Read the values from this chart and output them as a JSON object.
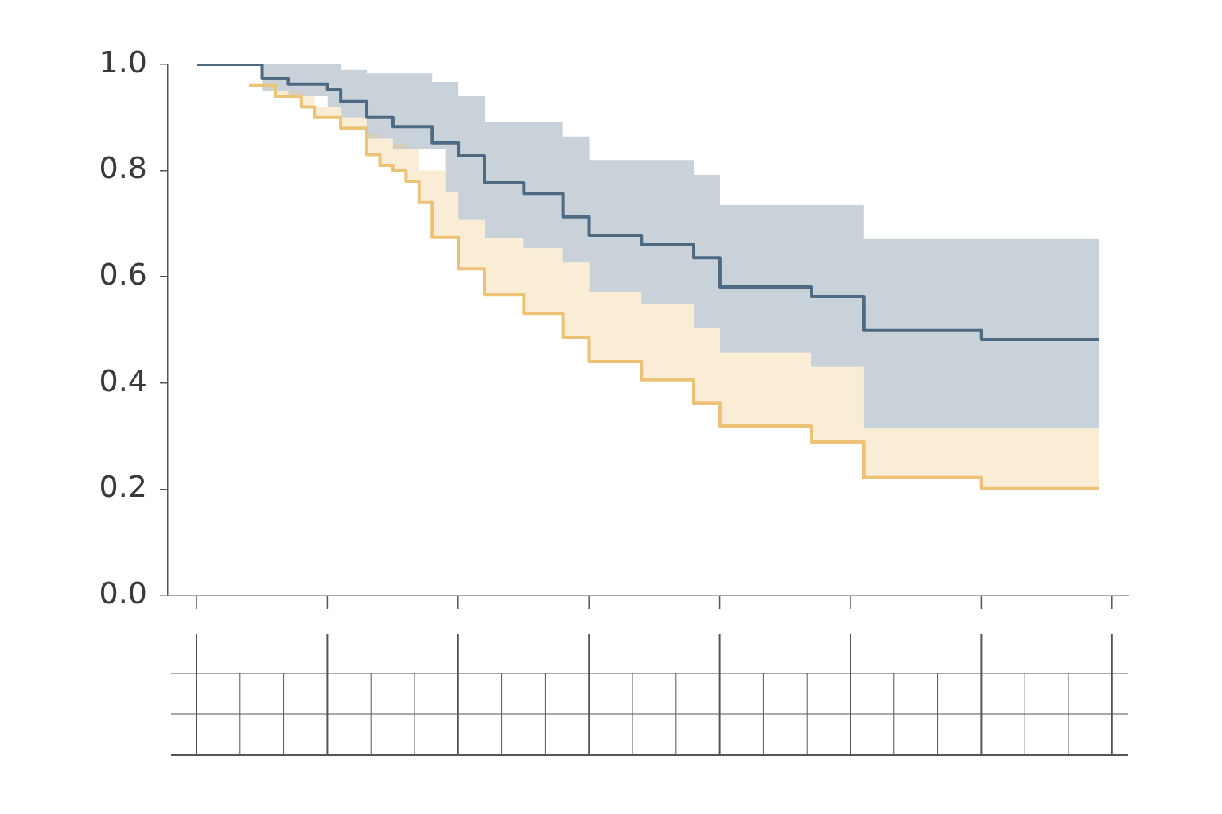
{
  "chart_data": {
    "type": "step",
    "categories": [
      null,
      null,
      null,
      null,
      null,
      null,
      null,
      null,
      null,
      null,
      null,
      null,
      null,
      null,
      null,
      null,
      null,
      null,
      null,
      null,
      null,
      null,
      null,
      null,
      null,
      null,
      null,
      null,
      null,
      null,
      null,
      null,
      null,
      null,
      null,
      null,
      null,
      null,
      null,
      null,
      null,
      null,
      null,
      null,
      null,
      null,
      null,
      null,
      null,
      null,
      null,
      null,
      null,
      null,
      null,
      null,
      null,
      null,
      null,
      null,
      null,
      null,
      null,
      null,
      null,
      null,
      null,
      null,
      null,
      null
    ],
    "ylim": [
      0,
      1
    ],
    "yticks": [
      {
        "value": 0,
        "label": "0.0"
      },
      {
        "value": 0.2,
        "label": "0.2"
      },
      {
        "value": 0.4,
        "label": "0.4"
      },
      {
        "value": 0.6,
        "label": "0.6"
      },
      {
        "value": 0.8,
        "label": "0.8"
      },
      {
        "value": 1,
        "label": "1.0"
      }
    ],
    "tick_labels": "y",
    "grid": false,
    "legend": false,
    "series": [
      {
        "color": "#4e6a82",
        "values": [
          1.0,
          1.0,
          1.0,
          1.0,
          1.0,
          0.973,
          0.973,
          0.963,
          0.963,
          0.963,
          0.952,
          0.93,
          0.93,
          0.9,
          0.9,
          0.883,
          0.883,
          0.883,
          0.852,
          0.852,
          0.828,
          0.828,
          0.777,
          0.777,
          0.777,
          0.757,
          0.757,
          0.757,
          0.713,
          0.713,
          0.678,
          0.678,
          0.678,
          0.678,
          0.66,
          0.66,
          0.66,
          0.66,
          0.636,
          0.636,
          0.581,
          0.581,
          0.581,
          0.581,
          0.581,
          0.581,
          0.581,
          0.563,
          0.563,
          0.563,
          0.563,
          0.499,
          0.499,
          0.499,
          0.499,
          0.499,
          0.499,
          0.499,
          0.499,
          0.499,
          0.482,
          0.482,
          0.482,
          0.482,
          0.482,
          0.482,
          0.482,
          0.482,
          0.482,
          0.482
        ],
        "lower": [
          1.0,
          1.0,
          1.0,
          1.0,
          1.0,
          0.95,
          0.95,
          0.94,
          0.94,
          0.94,
          0.92,
          0.9,
          0.9,
          0.86,
          0.86,
          0.84,
          0.84,
          0.84,
          0.84,
          0.759,
          0.707,
          0.707,
          0.672,
          0.672,
          0.672,
          0.654,
          0.654,
          0.654,
          0.627,
          0.627,
          0.572,
          0.572,
          0.572,
          0.572,
          0.549,
          0.549,
          0.549,
          0.549,
          0.503,
          0.503,
          0.457,
          0.457,
          0.457,
          0.457,
          0.457,
          0.457,
          0.457,
          0.43,
          0.43,
          0.43,
          0.43,
          0.314,
          0.314,
          0.314,
          0.314,
          0.314,
          0.314,
          0.314,
          0.314,
          0.314,
          0.314,
          0.314,
          0.314,
          0.314,
          0.314,
          0.314,
          0.314,
          0.314,
          0.314,
          0.314
        ],
        "upper": [
          1.0,
          1.0,
          1.0,
          1.0,
          1.0,
          1.0,
          1.0,
          1.0,
          1.0,
          1.0,
          1.0,
          0.99,
          0.99,
          0.983,
          0.983,
          0.983,
          0.983,
          0.983,
          0.967,
          0.967,
          0.94,
          0.94,
          0.892,
          0.892,
          0.892,
          0.892,
          0.892,
          0.892,
          0.864,
          0.864,
          0.82,
          0.82,
          0.82,
          0.82,
          0.82,
          0.82,
          0.82,
          0.82,
          0.792,
          0.792,
          0.735,
          0.735,
          0.735,
          0.735,
          0.735,
          0.735,
          0.735,
          0.735,
          0.735,
          0.735,
          0.735,
          0.671,
          0.671,
          0.671,
          0.671,
          0.671,
          0.671,
          0.671,
          0.671,
          0.671,
          0.671,
          0.671,
          0.671,
          0.671,
          0.671,
          0.671,
          0.671,
          0.671,
          0.671,
          0.671
        ]
      },
      {
        "color": "#ecc276",
        "values": [
          null,
          null,
          null,
          null,
          0.96,
          0.96,
          0.94,
          0.94,
          0.92,
          0.9,
          0.9,
          0.88,
          0.88,
          0.83,
          0.81,
          0.8,
          0.78,
          0.74,
          0.674,
          0.674,
          0.615,
          0.615,
          0.567,
          0.567,
          0.567,
          0.531,
          0.531,
          0.531,
          0.485,
          0.485,
          0.44,
          0.44,
          0.44,
          0.44,
          0.406,
          0.406,
          0.406,
          0.406,
          0.362,
          0.362,
          0.319,
          0.319,
          0.319,
          0.319,
          0.319,
          0.319,
          0.319,
          0.289,
          0.289,
          0.289,
          0.289,
          0.222,
          0.222,
          0.222,
          0.222,
          0.222,
          0.222,
          0.222,
          0.222,
          0.222,
          0.201,
          0.201,
          0.201,
          0.201,
          0.201,
          0.201,
          0.201,
          0.201,
          0.201,
          0.201
        ],
        "lower": [
          1.0,
          1.0,
          1.0,
          1.0,
          0.96,
          0.96,
          0.94,
          0.94,
          0.92,
          0.9,
          0.9,
          0.88,
          0.88,
          0.83,
          0.81,
          0.8,
          0.78,
          0.74,
          0.674,
          0.674,
          0.615,
          0.615,
          0.567,
          0.567,
          0.567,
          0.531,
          0.531,
          0.531,
          0.485,
          0.485,
          0.44,
          0.44,
          0.44,
          0.44,
          0.406,
          0.406,
          0.406,
          0.406,
          0.362,
          0.362,
          0.319,
          0.319,
          0.319,
          0.319,
          0.319,
          0.319,
          0.319,
          0.289,
          0.289,
          0.289,
          0.289,
          0.222,
          0.222,
          0.222,
          0.222,
          0.222,
          0.222,
          0.222,
          0.222,
          0.222,
          0.201,
          0.201,
          0.201,
          0.201,
          0.201,
          0.201,
          0.201,
          0.201,
          0.201,
          0.201
        ],
        "upper": [
          1.0,
          1.0,
          1.0,
          1.0,
          0.96,
          0.96,
          0.95,
          0.95,
          0.94,
          0.92,
          0.92,
          0.9,
          0.9,
          0.87,
          0.86,
          0.85,
          0.84,
          0.8,
          0.8,
          0.759,
          0.707,
          0.707,
          0.672,
          0.672,
          0.672,
          0.654,
          0.654,
          0.654,
          0.627,
          0.627,
          0.572,
          0.572,
          0.572,
          0.572,
          0.549,
          0.549,
          0.549,
          0.549,
          0.503,
          0.503,
          0.457,
          0.457,
          0.457,
          0.457,
          0.457,
          0.457,
          0.457,
          0.43,
          0.43,
          0.43,
          0.43,
          0.314,
          0.314,
          0.314,
          0.314,
          0.314,
          0.314,
          0.314,
          0.314,
          0.314,
          0.314,
          0.314,
          0.314,
          0.314,
          0.314,
          0.314,
          0.314,
          0.314,
          0.314,
          0.314
        ]
      }
    ]
  }
}
